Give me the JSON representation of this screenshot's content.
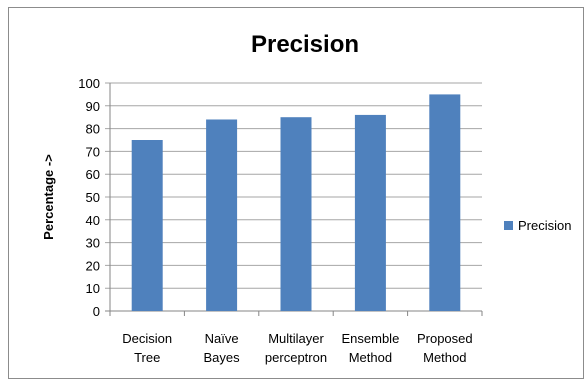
{
  "chart_data": {
    "type": "bar",
    "title": "Precision",
    "xlabel": "",
    "ylabel": "Percentage ->",
    "categories": [
      [
        "Decision",
        "Tree"
      ],
      [
        "Naïve",
        "Bayes"
      ],
      [
        "Multilayer",
        "perceptron"
      ],
      [
        "Ensemble",
        "Method"
      ],
      [
        "Proposed",
        "Method"
      ]
    ],
    "series": [
      {
        "name": "Precision",
        "values": [
          75,
          84,
          85,
          86,
          95
        ],
        "color": "#4f81bd"
      }
    ],
    "ylim": [
      0,
      100
    ],
    "yticks": [
      0,
      10,
      20,
      30,
      40,
      50,
      60,
      70,
      80,
      90,
      100
    ],
    "grid": true,
    "legend_position": "right"
  }
}
